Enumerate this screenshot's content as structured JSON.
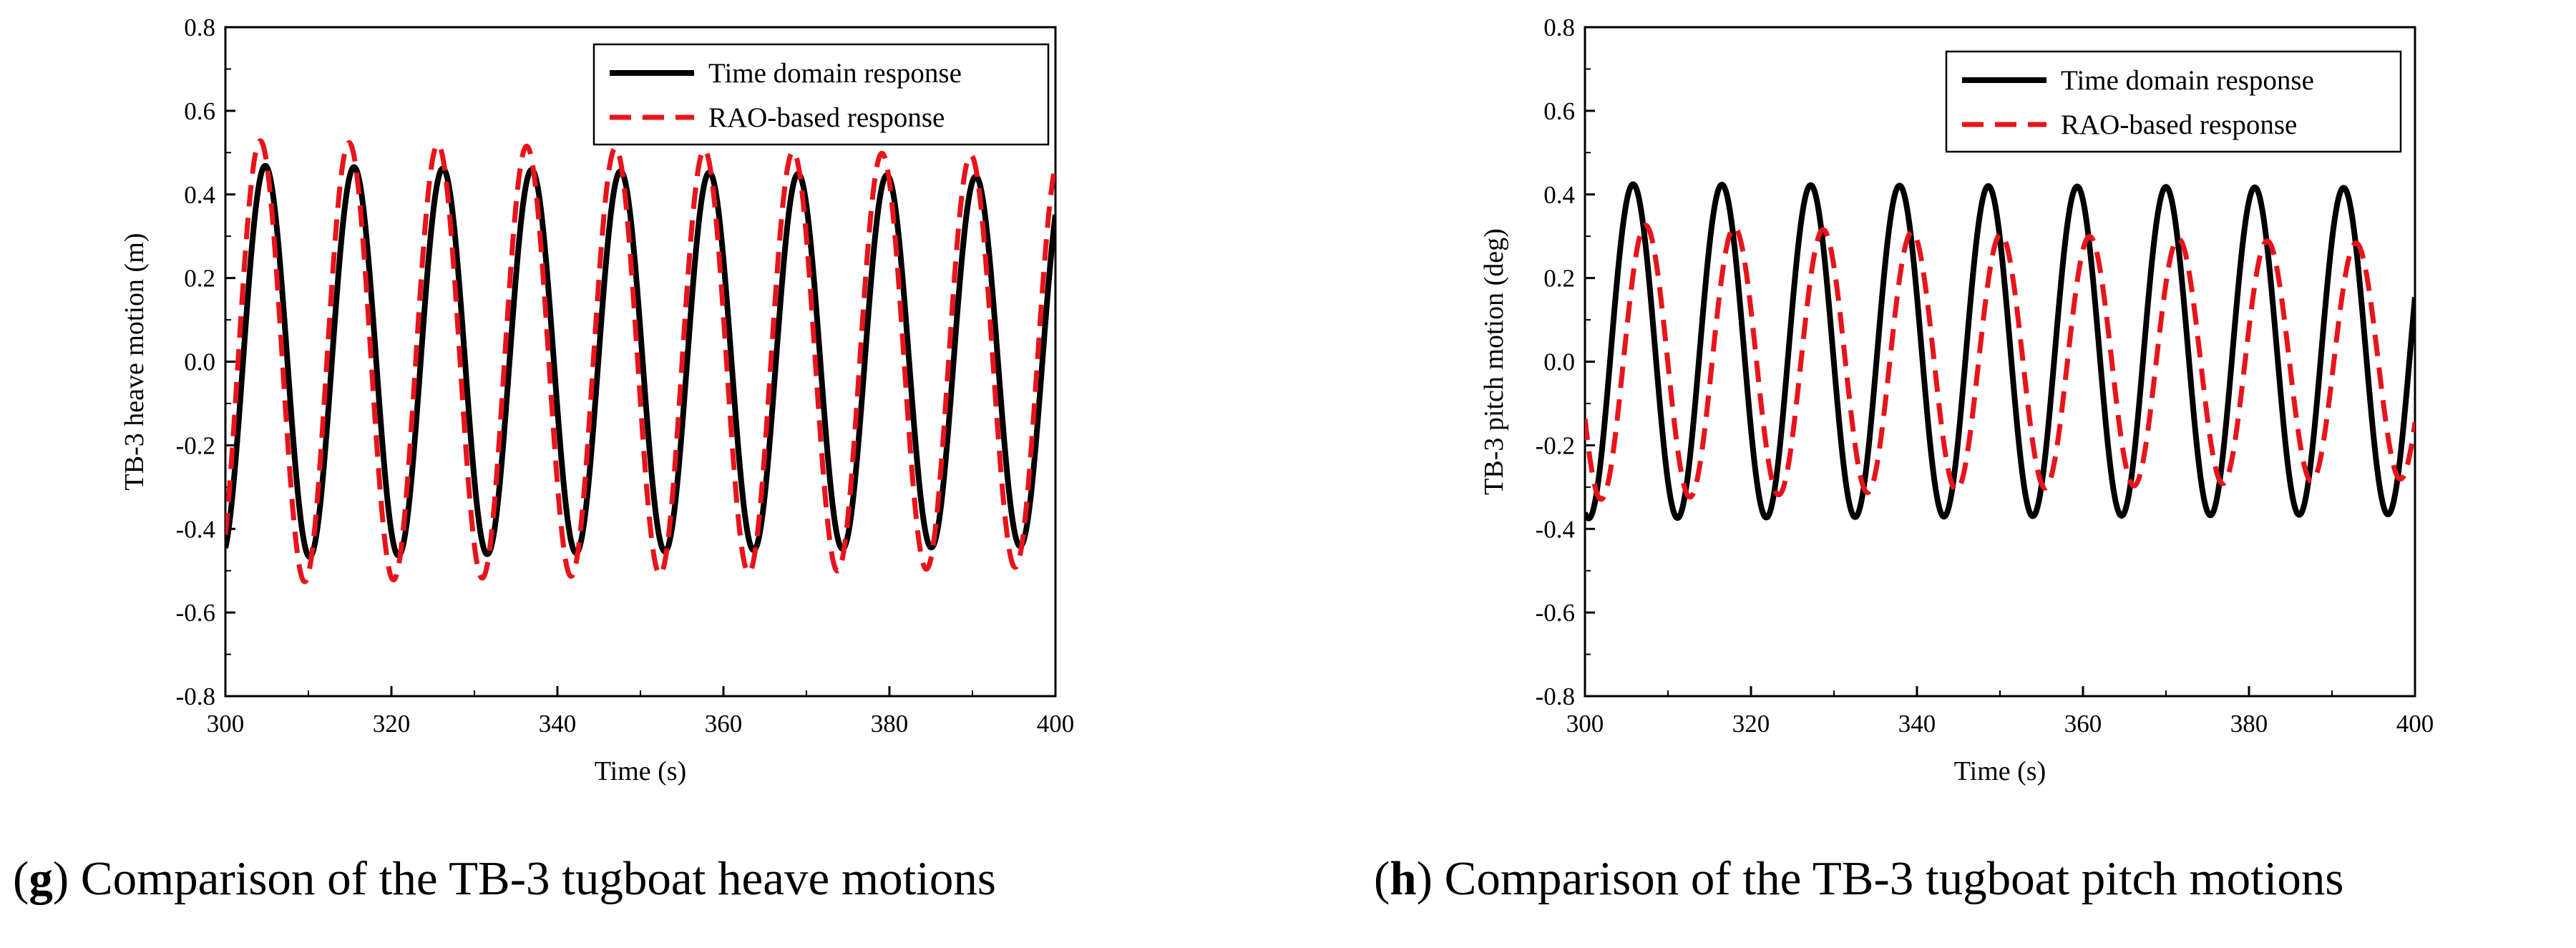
{
  "chart_data": [
    {
      "type": "line",
      "ylabel": "TB-3 heave motion (m)",
      "xlabel": "Time (s)",
      "xlim": [
        300,
        400
      ],
      "ylim": [
        -0.8,
        0.8
      ],
      "x_ticks": [
        "300",
        "320",
        "340",
        "360",
        "380",
        "400"
      ],
      "y_ticks": [
        "-0.8",
        "-0.6",
        "-0.4",
        "-0.2",
        "0.0",
        "0.2",
        "0.4",
        "0.6",
        "0.8"
      ],
      "legend_position": "top-right",
      "grid": false,
      "series": [
        {
          "name": "Time domain response",
          "style": "solid",
          "color": "#000000",
          "period": 10.7,
          "peak_x": 304.8,
          "amplitude_start": 0.47,
          "amplitude_end": 0.44,
          "x_sample": [
            304.8,
            310.15,
            315.5,
            320.85,
            326.2,
            331.55,
            336.9,
            342.25,
            347.6,
            352.95,
            358.3,
            363.65,
            369.0,
            374.35,
            379.7,
            385.05,
            390.4,
            395.75
          ],
          "y_sample": [
            0.47,
            -0.47,
            0.47,
            -0.46,
            0.47,
            -0.46,
            0.46,
            -0.46,
            0.46,
            -0.45,
            0.45,
            -0.45,
            0.45,
            -0.45,
            0.44,
            -0.44,
            0.44,
            -0.44
          ]
        },
        {
          "name": "RAO-based response",
          "style": "dashed",
          "color": "#e8141b",
          "period": 10.7,
          "peak_x": 304.2,
          "amplitude_start": 0.53,
          "amplitude_end": 0.49,
          "x_sample": [
            304.2,
            309.55,
            314.9,
            320.25,
            325.6,
            330.95,
            336.3,
            341.65,
            347.0,
            352.35,
            357.7,
            363.05,
            368.4,
            373.75,
            379.1,
            384.45,
            389.8,
            395.15
          ],
          "y_sample": [
            0.53,
            -0.52,
            0.52,
            -0.52,
            0.52,
            -0.52,
            0.52,
            -0.51,
            0.51,
            -0.51,
            0.51,
            -0.5,
            0.5,
            -0.5,
            0.5,
            -0.5,
            0.49,
            -0.49
          ]
        }
      ]
    },
    {
      "type": "line",
      "ylabel": "TB-3 pitch motion (deg)",
      "xlabel": "Time (s)",
      "xlim": [
        300,
        400
      ],
      "ylim": [
        -0.8,
        0.8
      ],
      "x_ticks": [
        "300",
        "320",
        "340",
        "360",
        "380",
        "400"
      ],
      "y_ticks": [
        "-0.8",
        "-0.6",
        "-0.4",
        "-0.2",
        "0.0",
        "0.2",
        "0.4",
        "0.6",
        "0.8"
      ],
      "legend_position": "top-right",
      "grid": false,
      "series": [
        {
          "name": "Time domain response",
          "style": "solid",
          "color": "#000000",
          "period": 10.7,
          "peak_x": 305.8,
          "mean": 0.025,
          "amplitude_start": 0.4,
          "amplitude_end": 0.39,
          "x_sample": [
            305.8,
            311.15,
            316.5,
            321.85,
            327.2,
            332.55,
            337.9,
            343.25,
            348.6,
            353.95,
            359.3,
            364.65,
            370.0,
            375.35,
            380.7,
            386.05,
            391.4,
            396.75
          ],
          "y_sample": [
            0.42,
            -0.38,
            0.42,
            -0.38,
            0.42,
            -0.38,
            0.42,
            -0.37,
            0.42,
            -0.37,
            0.42,
            -0.37,
            0.41,
            -0.37,
            0.41,
            -0.37,
            0.41,
            -0.37
          ]
        },
        {
          "name": "RAO-based response",
          "style": "dashed",
          "color": "#e8141b",
          "period": 10.7,
          "peak_x": 307.3,
          "mean": 0.0,
          "amplitude_start": 0.33,
          "amplitude_end": 0.28,
          "x_sample": [
            307.3,
            312.65,
            318.0,
            323.35,
            328.7,
            334.05,
            339.4,
            344.75,
            350.1,
            355.45,
            360.8,
            366.15,
            371.5,
            376.85,
            382.2,
            387.55,
            392.9,
            398.25
          ],
          "y_sample": [
            0.33,
            -0.33,
            0.33,
            -0.32,
            0.32,
            -0.32,
            0.32,
            -0.31,
            0.31,
            -0.3,
            0.3,
            -0.3,
            0.29,
            -0.29,
            0.29,
            -0.28,
            0.28,
            -0.28
          ]
        }
      ]
    }
  ],
  "captions": [
    {
      "letter": "g",
      "text": " Comparison of the TB-3 tugboat heave motions"
    },
    {
      "letter": "h",
      "text": " Comparison of the TB-3 tugboat pitch motions"
    }
  ]
}
